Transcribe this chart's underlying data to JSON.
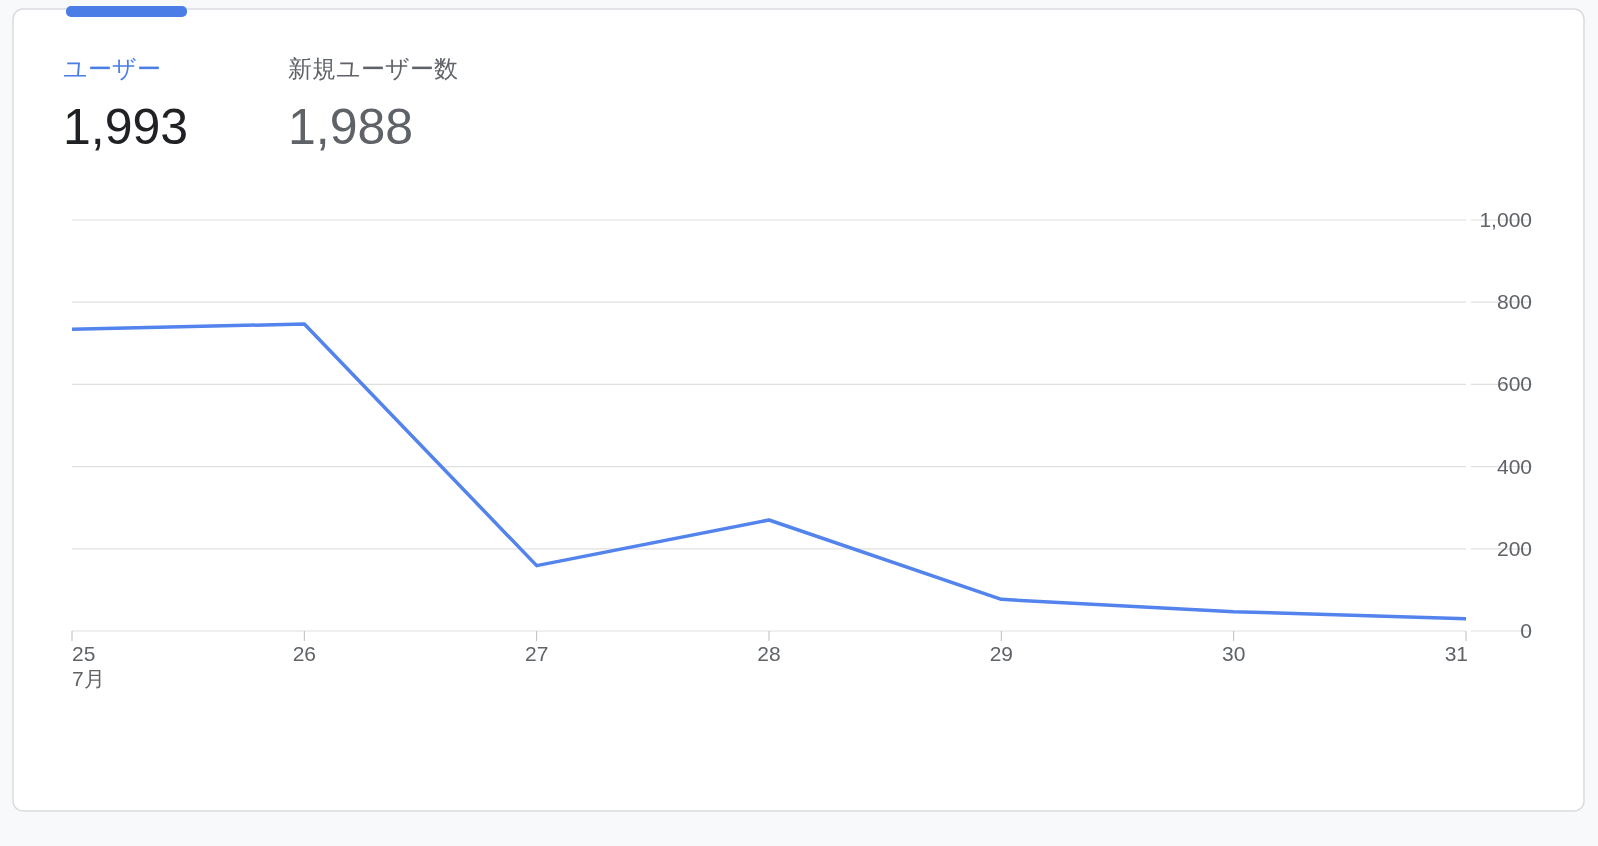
{
  "chart_data": [
    {
      "type": "other",
      "categories": [
        "ユーザー",
        "新規ユーザー数"
      ],
      "value_labels": [
        "1,993",
        "1,988"
      ],
      "colors": [
        "#4a7ee6",
        "#5f6368"
      ]
    },
    {
      "type": "line",
      "categories": [
        "25",
        "26",
        "27",
        "28",
        "29",
        "30",
        "31"
      ],
      "series": [
        {
          "color": "#5383ec",
          "values": [
            734,
            747,
            159,
            270,
            77,
            47,
            30
          ]
        }
      ],
      "ylim": [
        0,
        1000
      ],
      "yticks": [
        0,
        200,
        400,
        600,
        800,
        {
          "value": 1000,
          "label": "1,000"
        }
      ],
      "grid": "y",
      "marker": "none",
      "line_style": "solid",
      "annotations": [
        "7月"
      ]
    }
  ]
}
